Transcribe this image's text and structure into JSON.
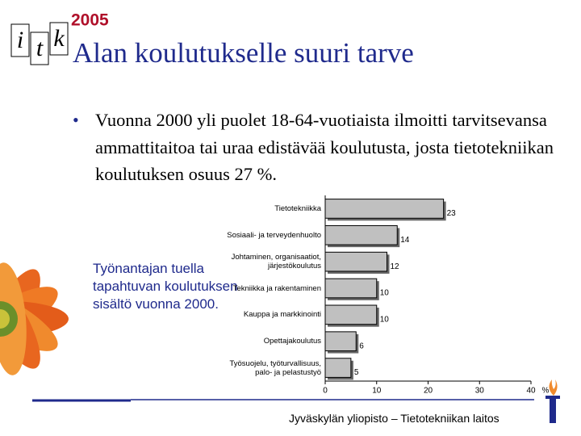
{
  "logo": {
    "letters": [
      "i",
      "t",
      "k"
    ],
    "year": "2005"
  },
  "title": "Alan koulutukselle suuri tarve",
  "bullet": "Vuonna 2000 yli puolet 18-64-vuotiaista ilmoitti tarvitsevansa ammattitaitoa tai uraa edistävää koulutusta, josta tietotekniikan koulutuksen osuus 27 %.",
  "caption": "Työnantajan tuella tapahtuvan koulutuksen sisältö vuonna 2000.",
  "footer": "Jyväskylän yliopisto – Tietotekniikan laitos",
  "chart_data": {
    "type": "bar",
    "orientation": "horizontal",
    "categories": [
      "Tietotekniikka",
      "Sosiaali- ja terveydenhuolto",
      "Johtaminen, organisaatiot, järjestökoulutus",
      "Tekniikka ja rakentaminen",
      "Kauppa ja markkinointi",
      "Opettajakoulutus",
      "Työsuojelu, työturvallisuus, palo- ja pelastustyö"
    ],
    "values": [
      23,
      14,
      12,
      10,
      10,
      6,
      5
    ],
    "color": "#c0c0c0",
    "xlim": [
      0,
      40
    ],
    "xticks": [
      0,
      10,
      20,
      30,
      40
    ],
    "xlabel": "%"
  }
}
